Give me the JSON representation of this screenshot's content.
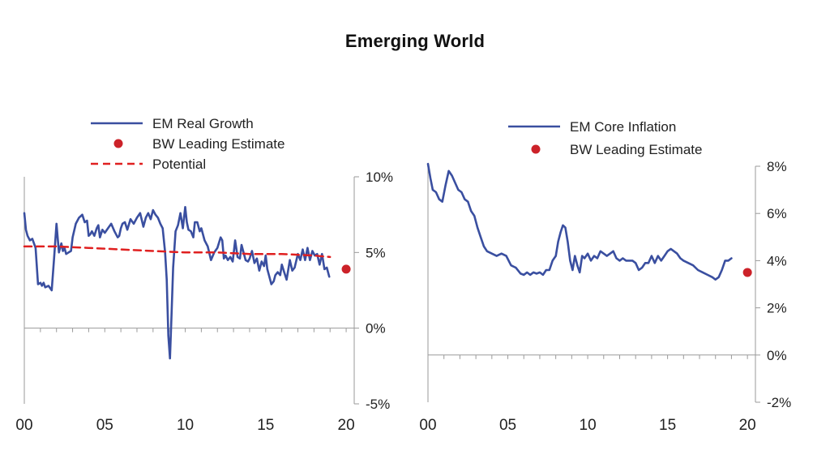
{
  "page": {
    "title": "Emerging World"
  },
  "chart_data": [
    {
      "type": "line",
      "x_tick_labels": [
        "00",
        "05",
        "10",
        "15",
        "20"
      ],
      "y_tick_labels": [
        "10%",
        "5%",
        "0%",
        "-5%"
      ],
      "xlim": [
        2000,
        2020.5
      ],
      "ylim": [
        -5,
        10
      ],
      "y_axis_side": "right",
      "grid": false,
      "legend_placement": "top-left",
      "series": [
        {
          "name": "EM Real Growth",
          "color": "#3a4fa0",
          "style": "solid",
          "x": [
            2000.0,
            2000.1,
            2000.2,
            2000.35,
            2000.5,
            2000.7,
            2000.85,
            2001.0,
            2001.1,
            2001.2,
            2001.3,
            2001.5,
            2001.7,
            2001.85,
            2002.0,
            2002.15,
            2002.3,
            2002.4,
            2002.5,
            2002.6,
            2002.75,
            2002.9,
            2003.0,
            2003.2,
            2003.4,
            2003.6,
            2003.75,
            2003.9,
            2004.0,
            2004.1,
            2004.2,
            2004.35,
            2004.5,
            2004.6,
            2004.7,
            2004.85,
            2005.0,
            2005.2,
            2005.4,
            2005.6,
            2005.8,
            2005.9,
            2006.0,
            2006.1,
            2006.25,
            2006.4,
            2006.6,
            2006.8,
            2007.0,
            2007.2,
            2007.4,
            2007.55,
            2007.7,
            2007.85,
            2008.0,
            2008.15,
            2008.3,
            2008.45,
            2008.6,
            2008.75,
            2008.85,
            2008.95,
            2009.05,
            2009.15,
            2009.25,
            2009.4,
            2009.55,
            2009.7,
            2009.85,
            2010.0,
            2010.1,
            2010.2,
            2010.35,
            2010.5,
            2010.6,
            2010.75,
            2010.9,
            2011.0,
            2011.2,
            2011.4,
            2011.6,
            2011.8,
            2012.0,
            2012.2,
            2012.3,
            2012.4,
            2012.5,
            2012.65,
            2012.8,
            2012.95,
            2013.1,
            2013.25,
            2013.4,
            2013.5,
            2013.6,
            2013.75,
            2013.9,
            2014.0,
            2014.15,
            2014.3,
            2014.45,
            2014.6,
            2014.75,
            2014.9,
            2015.0,
            2015.1,
            2015.2,
            2015.35,
            2015.5,
            2015.6,
            2015.75,
            2015.9,
            2016.0,
            2016.15,
            2016.3,
            2016.5,
            2016.65,
            2016.8,
            2017.0,
            2017.15,
            2017.3,
            2017.45,
            2017.6,
            2017.75,
            2017.9,
            2018.05,
            2018.2,
            2018.35,
            2018.5,
            2018.65,
            2018.8,
            2018.95
          ],
          "y": [
            7.6,
            6.5,
            6.1,
            5.8,
            5.9,
            5.3,
            2.9,
            3.0,
            2.8,
            3.0,
            2.7,
            2.8,
            2.5,
            4.6,
            6.9,
            5.0,
            5.6,
            5.1,
            5.3,
            4.9,
            5.0,
            5.1,
            6.0,
            6.9,
            7.3,
            7.5,
            7.0,
            7.1,
            6.1,
            6.2,
            6.4,
            6.1,
            6.6,
            6.8,
            6.0,
            6.5,
            6.3,
            6.6,
            6.9,
            6.4,
            6.0,
            6.1,
            6.6,
            6.9,
            7.0,
            6.5,
            7.2,
            6.9,
            7.3,
            7.6,
            6.7,
            7.3,
            7.6,
            7.2,
            7.8,
            7.5,
            7.3,
            6.9,
            6.6,
            5.0,
            3.2,
            -0.5,
            -2.0,
            1.0,
            4.0,
            6.4,
            6.8,
            7.6,
            6.6,
            8.0,
            7.0,
            6.5,
            6.4,
            6.0,
            7.0,
            7.0,
            6.4,
            6.6,
            5.8,
            5.4,
            4.5,
            5.0,
            5.3,
            6.0,
            5.8,
            4.6,
            4.8,
            4.5,
            4.7,
            4.4,
            5.8,
            4.7,
            4.6,
            5.5,
            5.1,
            4.5,
            4.4,
            4.6,
            5.1,
            4.3,
            4.6,
            3.8,
            4.4,
            4.1,
            4.8,
            3.9,
            3.5,
            2.9,
            3.1,
            3.5,
            3.7,
            3.5,
            4.2,
            3.7,
            3.2,
            4.5,
            3.8,
            4.0,
            4.9,
            4.5,
            5.2,
            4.5,
            5.3,
            4.5,
            5.1,
            4.8,
            4.9,
            4.2,
            4.9,
            3.9,
            4.0,
            3.4
          ]
        },
        {
          "name": "Potential",
          "color": "#e02020",
          "style": "dashed",
          "x": [
            2000.0,
            2002.0,
            2004.0,
            2006.0,
            2008.0,
            2010.0,
            2012.0,
            2014.0,
            2016.0,
            2018.0,
            2019.0
          ],
          "y": [
            5.4,
            5.4,
            5.3,
            5.2,
            5.1,
            5.0,
            5.0,
            4.9,
            4.9,
            4.8,
            4.7
          ]
        },
        {
          "name": "BW Leading Estimate",
          "color": "#cc2229",
          "style": "point",
          "x": [
            2020.0
          ],
          "y": [
            3.9
          ]
        }
      ]
    },
    {
      "type": "line",
      "x_tick_labels": [
        "00",
        "05",
        "10",
        "15",
        "20"
      ],
      "y_tick_labels": [
        "8%",
        "6%",
        "4%",
        "2%",
        "0%",
        "-2%"
      ],
      "xlim": [
        2000,
        2020.5
      ],
      "ylim": [
        -2,
        8
      ],
      "y_axis_side": "right",
      "grid": false,
      "legend_placement": "top-center",
      "series": [
        {
          "name": "EM Core Inflation",
          "color": "#3a4fa0",
          "style": "solid",
          "x": [
            2000.0,
            2000.15,
            2000.3,
            2000.5,
            2000.7,
            2000.9,
            2001.1,
            2001.3,
            2001.5,
            2001.7,
            2001.9,
            2002.1,
            2002.3,
            2002.5,
            2002.7,
            2002.9,
            2003.1,
            2003.3,
            2003.5,
            2003.7,
            2004.0,
            2004.3,
            2004.6,
            2004.9,
            2005.2,
            2005.5,
            2005.8,
            2006.0,
            2006.2,
            2006.4,
            2006.6,
            2006.8,
            2007.0,
            2007.2,
            2007.4,
            2007.6,
            2007.8,
            2008.0,
            2008.15,
            2008.3,
            2008.45,
            2008.6,
            2008.75,
            2008.9,
            2009.05,
            2009.2,
            2009.35,
            2009.5,
            2009.65,
            2009.8,
            2010.0,
            2010.2,
            2010.4,
            2010.6,
            2010.8,
            2011.0,
            2011.2,
            2011.4,
            2011.6,
            2011.8,
            2012.0,
            2012.2,
            2012.4,
            2012.6,
            2012.8,
            2013.0,
            2013.2,
            2013.4,
            2013.6,
            2013.8,
            2014.0,
            2014.2,
            2014.4,
            2014.6,
            2014.8,
            2015.0,
            2015.2,
            2015.4,
            2015.6,
            2015.8,
            2016.0,
            2016.3,
            2016.6,
            2016.9,
            2017.2,
            2017.5,
            2017.8,
            2018.0,
            2018.2,
            2018.4,
            2018.6,
            2018.8,
            2019.0
          ],
          "y": [
            8.1,
            7.5,
            7.0,
            6.9,
            6.6,
            6.5,
            7.2,
            7.8,
            7.6,
            7.3,
            7.0,
            6.9,
            6.6,
            6.5,
            6.1,
            5.9,
            5.4,
            5.0,
            4.6,
            4.4,
            4.3,
            4.2,
            4.3,
            4.2,
            3.8,
            3.7,
            3.45,
            3.4,
            3.5,
            3.4,
            3.5,
            3.45,
            3.5,
            3.4,
            3.6,
            3.6,
            4.0,
            4.2,
            4.8,
            5.2,
            5.5,
            5.4,
            4.8,
            4.0,
            3.6,
            4.2,
            3.8,
            3.5,
            4.2,
            4.1,
            4.3,
            4.0,
            4.2,
            4.1,
            4.4,
            4.3,
            4.2,
            4.3,
            4.4,
            4.1,
            4.0,
            4.1,
            4.0,
            4.0,
            4.0,
            3.9,
            3.6,
            3.7,
            3.9,
            3.9,
            4.2,
            3.9,
            4.2,
            4.0,
            4.2,
            4.4,
            4.5,
            4.4,
            4.3,
            4.1,
            4.0,
            3.9,
            3.8,
            3.6,
            3.5,
            3.4,
            3.3,
            3.2,
            3.3,
            3.6,
            4.0,
            4.0,
            4.1
          ]
        },
        {
          "name": "BW Leading Estimate",
          "color": "#cc2229",
          "style": "point",
          "x": [
            2020.0
          ],
          "y": [
            3.5
          ]
        }
      ]
    }
  ]
}
